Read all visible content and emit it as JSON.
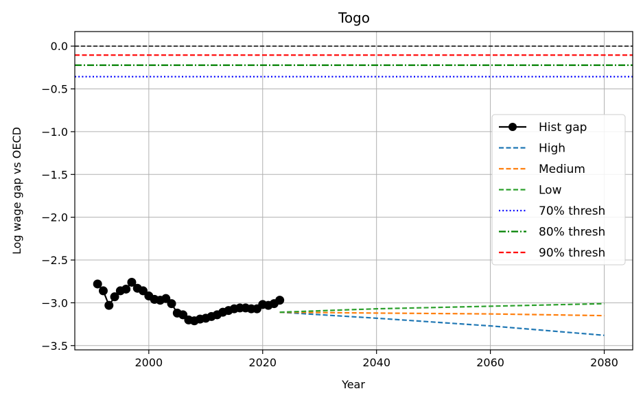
{
  "chart_data": {
    "type": "line",
    "title": "Togo",
    "xlabel": "Year",
    "ylabel": "Log wage gap vs OECD",
    "xlim": [
      1987,
      2085
    ],
    "ylim": [
      -3.55,
      0.17
    ],
    "xticks": [
      2000,
      2020,
      2040,
      2060,
      2080
    ],
    "xtick_labels": [
      "2000",
      "2020",
      "2040",
      "2060",
      "2080"
    ],
    "yticks": [
      0.0,
      -0.5,
      -1.0,
      -1.5,
      -2.0,
      -2.5,
      -3.0,
      -3.5
    ],
    "ytick_labels": [
      "0.0",
      "−0.5",
      "−1.0",
      "−1.5",
      "−2.0",
      "−2.5",
      "−3.0",
      "−3.5"
    ],
    "grid": true,
    "legend_position": "center-right",
    "reference_line": {
      "y": 0.0,
      "color": "#000000",
      "style": "dashed"
    },
    "series": [
      {
        "name": "Hist gap",
        "kind": "line-marker",
        "color": "#000000",
        "x": [
          1991,
          1992,
          1993,
          1994,
          1995,
          1996,
          1997,
          1998,
          1999,
          2000,
          2001,
          2002,
          2003,
          2004,
          2005,
          2006,
          2007,
          2008,
          2009,
          2010,
          2011,
          2012,
          2013,
          2014,
          2015,
          2016,
          2017,
          2018,
          2019,
          2020,
          2021,
          2022,
          2023
        ],
        "y": [
          -2.78,
          -2.86,
          -3.03,
          -2.93,
          -2.86,
          -2.84,
          -2.76,
          -2.83,
          -2.86,
          -2.92,
          -2.96,
          -2.97,
          -2.95,
          -3.01,
          -3.12,
          -3.14,
          -3.2,
          -3.21,
          -3.19,
          -3.18,
          -3.16,
          -3.14,
          -3.11,
          -3.09,
          -3.07,
          -3.06,
          -3.06,
          -3.07,
          -3.07,
          -3.02,
          -3.03,
          -3.01,
          -2.97
        ]
      },
      {
        "name": "High",
        "kind": "dashed",
        "color": "#1f77b4",
        "x": [
          2023,
          2040,
          2060,
          2080
        ],
        "y": [
          -3.11,
          -3.18,
          -3.27,
          -3.38
        ]
      },
      {
        "name": "Medium",
        "kind": "dashed",
        "color": "#ff7f0e",
        "x": [
          2023,
          2040,
          2060,
          2080
        ],
        "y": [
          -3.11,
          -3.12,
          -3.13,
          -3.15
        ]
      },
      {
        "name": "Low",
        "kind": "dashed",
        "color": "#2ca02c",
        "x": [
          2023,
          2040,
          2060,
          2080
        ],
        "y": [
          -3.11,
          -3.07,
          -3.04,
          -3.01
        ]
      },
      {
        "name": "70% thresh",
        "kind": "dotted",
        "color": "#0000ff",
        "x": [
          1987,
          2085
        ],
        "y": [
          -0.357,
          -0.357
        ]
      },
      {
        "name": "80% thresh",
        "kind": "dashdot",
        "color": "#008000",
        "x": [
          1987,
          2085
        ],
        "y": [
          -0.223,
          -0.223
        ]
      },
      {
        "name": "90% thresh",
        "kind": "dashed",
        "color": "#ff0000",
        "x": [
          1987,
          2085
        ],
        "y": [
          -0.105,
          -0.105
        ]
      }
    ]
  }
}
